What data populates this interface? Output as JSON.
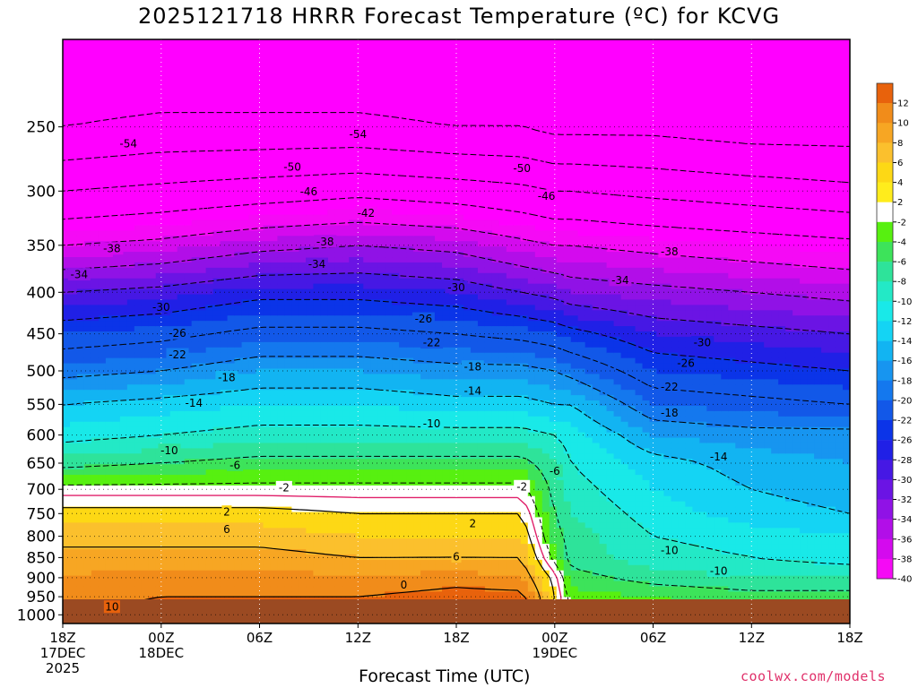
{
  "chart_data": {
    "type": "heatmap",
    "title": "2025121718 HRRR Forecast Temperature (ºC) for KCVG",
    "xlabel": "Forecast Time (UTC)",
    "ylabel": "",
    "credit": "coolwx.com/models",
    "y_axis": {
      "scale": "log-pressure",
      "reversed": true,
      "range": [
        1025,
        195
      ],
      "ticks": [
        250,
        300,
        350,
        400,
        450,
        500,
        550,
        600,
        650,
        700,
        750,
        800,
        850,
        900,
        950,
        1000
      ]
    },
    "x_axis": {
      "range_hours": [
        0,
        48
      ],
      "ticks": [
        {
          "hour": 0,
          "lines": [
            "18Z",
            "17DEC",
            "2025"
          ]
        },
        {
          "hour": 6,
          "lines": [
            "00Z",
            "18DEC"
          ]
        },
        {
          "hour": 12,
          "lines": [
            "06Z"
          ]
        },
        {
          "hour": 18,
          "lines": [
            "12Z"
          ]
        },
        {
          "hour": 24,
          "lines": [
            "18Z"
          ]
        },
        {
          "hour": 30,
          "lines": [
            "00Z",
            "19DEC"
          ]
        },
        {
          "hour": 36,
          "lines": [
            "06Z"
          ]
        },
        {
          "hour": 42,
          "lines": [
            "12Z"
          ]
        },
        {
          "hour": 48,
          "lines": [
            "18Z"
          ]
        }
      ]
    },
    "grid": true,
    "colorbar": {
      "position": "right",
      "bins": [
        {
          "label": "12",
          "color": "#e8620c"
        },
        {
          "label": "10",
          "color": "#f18c1a"
        },
        {
          "label": "8",
          "color": "#f7a623"
        },
        {
          "label": "6",
          "color": "#fbc02d"
        },
        {
          "label": "4",
          "color": "#fdd815"
        },
        {
          "label": "2",
          "color": "#ffec1c"
        },
        {
          "label": "-2",
          "color": "#ffffff"
        },
        {
          "label": "-4",
          "color": "#57f010"
        },
        {
          "label": "-6",
          "color": "#3de35a"
        },
        {
          "label": "-8",
          "color": "#2ee39a"
        },
        {
          "label": "-10",
          "color": "#23e9c6"
        },
        {
          "label": "-12",
          "color": "#19e9e8"
        },
        {
          "label": "-14",
          "color": "#14d4f4"
        },
        {
          "label": "-16",
          "color": "#12b4f2"
        },
        {
          "label": "-18",
          "color": "#1795f0"
        },
        {
          "label": "-20",
          "color": "#1478ee"
        },
        {
          "label": "-22",
          "color": "#1258e8"
        },
        {
          "label": "-26",
          "color": "#0b34e8"
        },
        {
          "label": "-28",
          "color": "#2020e6"
        },
        {
          "label": "-30",
          "color": "#4618e4"
        },
        {
          "label": "-32",
          "color": "#6b14e4"
        },
        {
          "label": "-34",
          "color": "#9012e6"
        },
        {
          "label": "-36",
          "color": "#b20ee8"
        },
        {
          "label": "-38",
          "color": "#d40aee"
        },
        {
          "label": "-40",
          "color": "#f50af5"
        }
      ],
      "over_color": "#ff00ff",
      "under_color": "#e25a08"
    },
    "ground_color": "#9b4a22",
    "temperature_profile": {
      "hours": [
        0,
        6,
        12,
        18,
        24,
        28,
        30,
        31,
        36,
        42,
        48
      ],
      "pressure_levels": [
        1000,
        950,
        900,
        850,
        800,
        750,
        700,
        650,
        600,
        550,
        500,
        450,
        400,
        350,
        300,
        250,
        200
      ],
      "temps": [
        [
          10,
          11,
          11,
          12,
          13,
          13,
          0,
          -2,
          -3,
          -4,
          -4
        ],
        [
          9,
          10,
          10,
          10,
          11,
          11,
          2,
          -3,
          -4,
          -5,
          -5
        ],
        [
          8,
          9,
          9,
          8,
          9,
          8,
          1,
          -5,
          -7,
          -8,
          -8
        ],
        [
          7,
          7,
          7,
          6,
          6,
          6,
          -3,
          -7,
          -9,
          -10,
          -11
        ],
        [
          5,
          5,
          5,
          4,
          4,
          4,
          -5,
          -7,
          -10,
          -11,
          -12
        ],
        [
          3,
          3,
          3,
          2,
          2,
          2,
          -6,
          -8,
          -11,
          -13,
          -14
        ],
        [
          -1,
          -1,
          -1,
          -1,
          -1,
          -1,
          -7,
          -9,
          -12,
          -14,
          -15
        ],
        [
          -7,
          -6,
          -5,
          -5,
          -5,
          -5,
          -8,
          -10,
          -13,
          -15,
          -16
        ],
        [
          -11,
          -10,
          -9,
          -9,
          -9,
          -9,
          -10,
          -11,
          -16,
          -17,
          -17
        ],
        [
          -14,
          -13,
          -12,
          -12,
          -13,
          -13,
          -14,
          -14,
          -20,
          -21,
          -22
        ],
        [
          -19,
          -18,
          -16,
          -16,
          -17,
          -17,
          -18,
          -19,
          -24,
          -25,
          -26
        ],
        [
          -24,
          -23,
          -21,
          -21,
          -22,
          -23,
          -24,
          -25,
          -28,
          -29,
          -30
        ],
        [
          -30,
          -29,
          -27,
          -27,
          -28,
          -30,
          -31,
          -32,
          -33,
          -34,
          -35
        ],
        [
          -38,
          -37,
          -35,
          -34,
          -35,
          -37,
          -38,
          -38,
          -39,
          -40,
          -41
        ],
        [
          -46,
          -45,
          -44,
          -43,
          -44,
          -45,
          -46,
          -46,
          -47,
          -48,
          -49
        ],
        [
          -54,
          -53,
          -53,
          -53,
          -54,
          -54,
          -55,
          -55,
          -55,
          -56,
          -56
        ],
        [
          -58,
          -58,
          -58,
          -58,
          -58,
          -58,
          -58,
          -58,
          -58,
          -58,
          -58
        ]
      ]
    },
    "contour_labels": [
      {
        "text": "-54",
        "hour": 4.0,
        "p": 262
      },
      {
        "text": "-54",
        "hour": 18.0,
        "p": 255
      },
      {
        "text": "-50",
        "hour": 14.0,
        "p": 280
      },
      {
        "text": "-50",
        "hour": 28.0,
        "p": 281
      },
      {
        "text": "-46",
        "hour": 15.0,
        "p": 300
      },
      {
        "text": "-46",
        "hour": 29.5,
        "p": 304
      },
      {
        "text": "-42",
        "hour": 18.5,
        "p": 319
      },
      {
        "text": "-38",
        "hour": 3.0,
        "p": 353
      },
      {
        "text": "-38",
        "hour": 16.0,
        "p": 346
      },
      {
        "text": "-38",
        "hour": 37.0,
        "p": 356
      },
      {
        "text": "-34",
        "hour": 1.0,
        "p": 380
      },
      {
        "text": "-34",
        "hour": 15.5,
        "p": 369
      },
      {
        "text": "-34",
        "hour": 34.0,
        "p": 386
      },
      {
        "text": "-30",
        "hour": 6.0,
        "p": 417
      },
      {
        "text": "-30",
        "hour": 24.0,
        "p": 394
      },
      {
        "text": "-30",
        "hour": 39.0,
        "p": 461
      },
      {
        "text": "-26",
        "hour": 7.0,
        "p": 449
      },
      {
        "text": "-26",
        "hour": 22.0,
        "p": 431
      },
      {
        "text": "-26",
        "hour": 38.0,
        "p": 489
      },
      {
        "text": "-22",
        "hour": 7.0,
        "p": 477
      },
      {
        "text": "-22",
        "hour": 22.5,
        "p": 461
      },
      {
        "text": "-22",
        "hour": 37.0,
        "p": 523
      },
      {
        "text": "-18",
        "hour": 10.0,
        "p": 509
      },
      {
        "text": "-18",
        "hour": 25.0,
        "p": 494
      },
      {
        "text": "-18",
        "hour": 37.0,
        "p": 563
      },
      {
        "text": "-14",
        "hour": 8.0,
        "p": 547
      },
      {
        "text": "-14",
        "hour": 25.0,
        "p": 529
      },
      {
        "text": "-14",
        "hour": 40.0,
        "p": 638
      },
      {
        "text": "-10",
        "hour": 6.5,
        "p": 626
      },
      {
        "text": "-10",
        "hour": 22.5,
        "p": 580
      },
      {
        "text": "-10",
        "hour": 37.0,
        "p": 832
      },
      {
        "text": "-10",
        "hour": 40.0,
        "p": 882
      },
      {
        "text": "-6",
        "hour": 10.5,
        "p": 653
      },
      {
        "text": "-6",
        "hour": 30.0,
        "p": 664
      },
      {
        "text": "-2",
        "hour": 13.5,
        "p": 696
      },
      {
        "text": "-2",
        "hour": 28.0,
        "p": 694
      },
      {
        "text": "2",
        "hour": 10.0,
        "p": 746
      },
      {
        "text": "2",
        "hour": 25.0,
        "p": 771
      },
      {
        "text": "6",
        "hour": 10.0,
        "p": 784
      },
      {
        "text": "6",
        "hour": 24.0,
        "p": 847
      },
      {
        "text": "10",
        "hour": 3.0,
        "p": 977
      },
      {
        "text": "0",
        "hour": 20.8,
        "p": 918
      }
    ]
  }
}
